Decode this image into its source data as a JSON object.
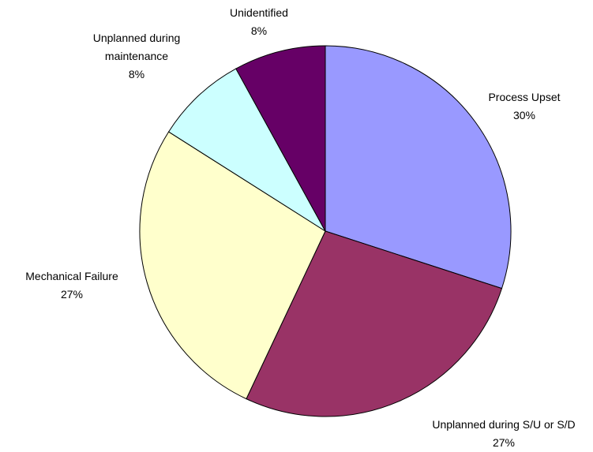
{
  "chart_data": {
    "type": "pie",
    "categories": [
      "Process Upset",
      "Unplanned during S/U or S/D",
      "Mechanical Failure",
      "Unplanned during maintenance",
      "Unidentified"
    ],
    "values": [
      30,
      27,
      27,
      8,
      8
    ],
    "value_labels": [
      "30%",
      "27%",
      "27%",
      "8%",
      "8%"
    ],
    "colors": [
      "#9999ff",
      "#993366",
      "#ffffcc",
      "#ccffff",
      "#660066"
    ]
  }
}
